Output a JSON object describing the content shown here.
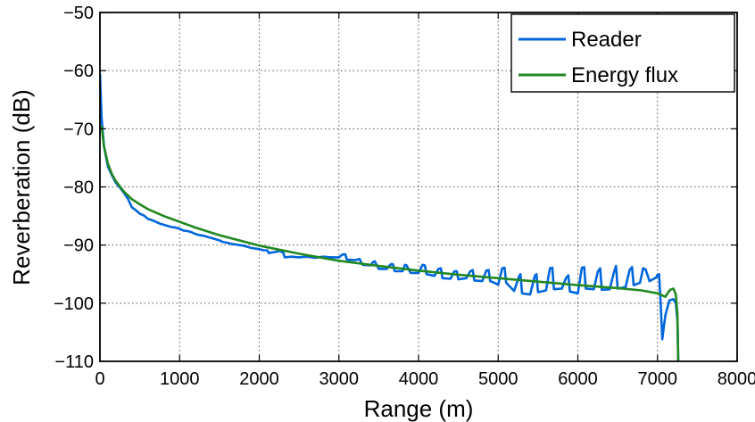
{
  "chart_data": {
    "type": "line",
    "xlabel": "Range (m)",
    "ylabel": "Reverberation (dB)",
    "xlim": [
      0,
      8000
    ],
    "ylim": [
      -110,
      -50
    ],
    "xticks": [
      0,
      1000,
      2000,
      3000,
      4000,
      5000,
      6000,
      7000,
      8000
    ],
    "yticks": [
      -110,
      -100,
      -90,
      -80,
      -70,
      -60,
      -50
    ],
    "xtick_labels": [
      "0",
      "1000",
      "2000",
      "3000",
      "4000",
      "5000",
      "6000",
      "7000",
      "8000"
    ],
    "ytick_labels": [
      "−110",
      "−100",
      "−90",
      "−80",
      "−70",
      "−60",
      "−50"
    ],
    "grid": true,
    "legend_position": "top-right",
    "series": [
      {
        "name": "Reader",
        "color": "#0066dd",
        "x": [
          0,
          20,
          50,
          100,
          150,
          200,
          250,
          300,
          350,
          400,
          450,
          500,
          550,
          600,
          650,
          700,
          750,
          800,
          850,
          900,
          950,
          1000,
          1050,
          1100,
          1150,
          1200,
          1250,
          1300,
          1350,
          1400,
          1450,
          1500,
          1550,
          1600,
          1650,
          1700,
          1750,
          1800,
          1850,
          1900,
          1950,
          2000,
          2050,
          2100,
          2120,
          2150,
          2200,
          2250,
          2300,
          2320,
          2400,
          2500,
          2600,
          2700,
          2800,
          2900,
          3000,
          3050,
          3080,
          3100,
          3200,
          3260,
          3280,
          3300,
          3400,
          3430,
          3450,
          3500,
          3600,
          3650,
          3680,
          3700,
          3800,
          3830,
          3850,
          3900,
          4000,
          4050,
          4080,
          4100,
          4200,
          4250,
          4280,
          4300,
          4400,
          4450,
          4480,
          4500,
          4600,
          4650,
          4680,
          4700,
          4800,
          4850,
          4880,
          4900,
          5000,
          5050,
          5080,
          5100,
          5200,
          5260,
          5280,
          5300,
          5400,
          5460,
          5480,
          5500,
          5600,
          5650,
          5680,
          5700,
          5800,
          5850,
          5880,
          5900,
          6000,
          6050,
          6080,
          6100,
          6200,
          6250,
          6280,
          6300,
          6400,
          6450,
          6480,
          6500,
          6600,
          6650,
          6680,
          6700,
          6780,
          6820,
          6850,
          6900,
          6980,
          7000,
          7020,
          7040,
          7060,
          7080,
          7100,
          7150,
          7200,
          7230,
          7250,
          7260
        ],
        "y": [
          -60.5,
          -68,
          -73,
          -76.5,
          -78,
          -79.3,
          -80.1,
          -81,
          -82,
          -83.5,
          -84,
          -84.6,
          -84.9,
          -85.5,
          -85.7,
          -86,
          -86.3,
          -86.5,
          -86.7,
          -86.9,
          -87,
          -87.2,
          -87.5,
          -87.6,
          -87.8,
          -88.1,
          -88.3,
          -88.4,
          -88.6,
          -88.8,
          -89,
          -89.2,
          -89.5,
          -89.6,
          -89.8,
          -89.9,
          -90,
          -90.1,
          -90.3,
          -90.5,
          -90.6,
          -90.7,
          -90.9,
          -90.9,
          -91.4,
          -91.3,
          -91.2,
          -91.0,
          -91.3,
          -92.1,
          -92.0,
          -92.1,
          -92.0,
          -92.2,
          -92.0,
          -92.1,
          -92.1,
          -91.6,
          -91.6,
          -92.5,
          -92.6,
          -92.4,
          -93.0,
          -93.4,
          -93.5,
          -92.9,
          -92.8,
          -94.1,
          -94.1,
          -93.3,
          -93.3,
          -94.5,
          -94.5,
          -93.4,
          -93.5,
          -94.8,
          -94.8,
          -93.4,
          -93.5,
          -95.0,
          -95.3,
          -94.1,
          -94.0,
          -95.7,
          -95.8,
          -94.5,
          -94.5,
          -95.9,
          -95.7,
          -94.5,
          -94.3,
          -96.1,
          -96.2,
          -94.4,
          -94.3,
          -96.2,
          -96.8,
          -94.0,
          -93.9,
          -96.5,
          -97.9,
          -95.4,
          -95.0,
          -98.3,
          -98.5,
          -95.3,
          -95.0,
          -98.1,
          -97.8,
          -94.0,
          -93.9,
          -97.6,
          -97.5,
          -95.7,
          -95.2,
          -98.0,
          -98.3,
          -93.9,
          -93.8,
          -97.5,
          -97.6,
          -94.6,
          -94.0,
          -97.7,
          -97.6,
          -94.8,
          -93.6,
          -97.5,
          -97.2,
          -94.3,
          -93.8,
          -96.9,
          -96.5,
          -94.0,
          -94.2,
          -96.2,
          -95.6,
          -95.1,
          -95.0,
          -100.0,
          -106.2,
          -104.0,
          -102.0,
          -99.5,
          -99.3,
          -100.0,
          -103.0,
          -110.0
        ]
      },
      {
        "name": "Energy flux",
        "color": "#228822",
        "x": [
          20,
          50,
          100,
          150,
          200,
          300,
          400,
          500,
          600,
          800,
          1000,
          1200,
          1500,
          2000,
          2500,
          3000,
          3500,
          4000,
          4500,
          5000,
          5500,
          6000,
          6500,
          6800,
          7000,
          7050,
          7080,
          7100,
          7130,
          7160,
          7200,
          7230,
          7250,
          7260
        ],
        "y": [
          -69.5,
          -73,
          -76,
          -77.8,
          -79,
          -80.8,
          -82.1,
          -83,
          -83.8,
          -85,
          -86,
          -87,
          -88.3,
          -90.1,
          -91.5,
          -92.7,
          -93.6,
          -94.4,
          -95.1,
          -95.7,
          -96.3,
          -96.9,
          -97.4,
          -97.8,
          -98.3,
          -98.6,
          -98.8,
          -98.9,
          -98.2,
          -97.7,
          -97.5,
          -98.5,
          -102.0,
          -110.0
        ]
      }
    ]
  }
}
